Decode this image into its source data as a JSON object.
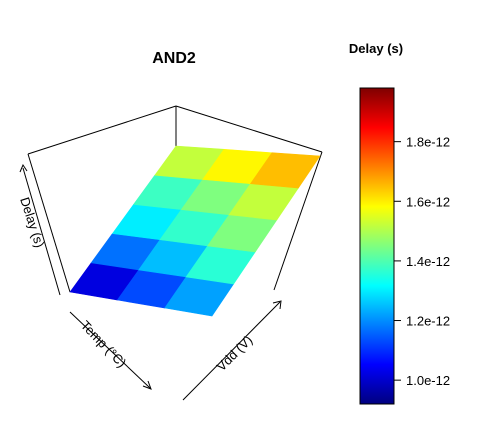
{
  "chart_data": {
    "type": "surface3d",
    "title": "AND2",
    "legend_title": "Delay (s)",
    "axis_labels": {
      "x": "Temp (°C)",
      "y": "Vdd (V)",
      "z": "Delay (s)"
    },
    "colorbar": {
      "min": 9.2e-13,
      "max": 1.98e-12,
      "tick_labels": [
        "1.0e-12",
        "1.2e-12",
        "1.4e-12",
        "1.6e-12",
        "1.8e-12"
      ],
      "tick_values": [
        1e-12,
        1.2e-12,
        1.4e-12,
        1.6e-12,
        1.8e-12
      ],
      "colors": [
        "#00007F",
        "#0000FF",
        "#007FFF",
        "#00FFFF",
        "#7FFF7F",
        "#FFFF00",
        "#FF7F00",
        "#FF0000",
        "#7F0000"
      ]
    },
    "surface_rows": [
      [
        1.02e-12,
        1.13e-12,
        1.22e-12
      ],
      [
        1.17e-12,
        1.25e-12,
        1.36e-12
      ],
      [
        1.3e-12,
        1.37e-12,
        1.45e-12
      ],
      [
        1.38e-12,
        1.45e-12,
        1.52e-12
      ],
      [
        1.52e-12,
        1.59e-12,
        1.65e-12
      ]
    ]
  }
}
